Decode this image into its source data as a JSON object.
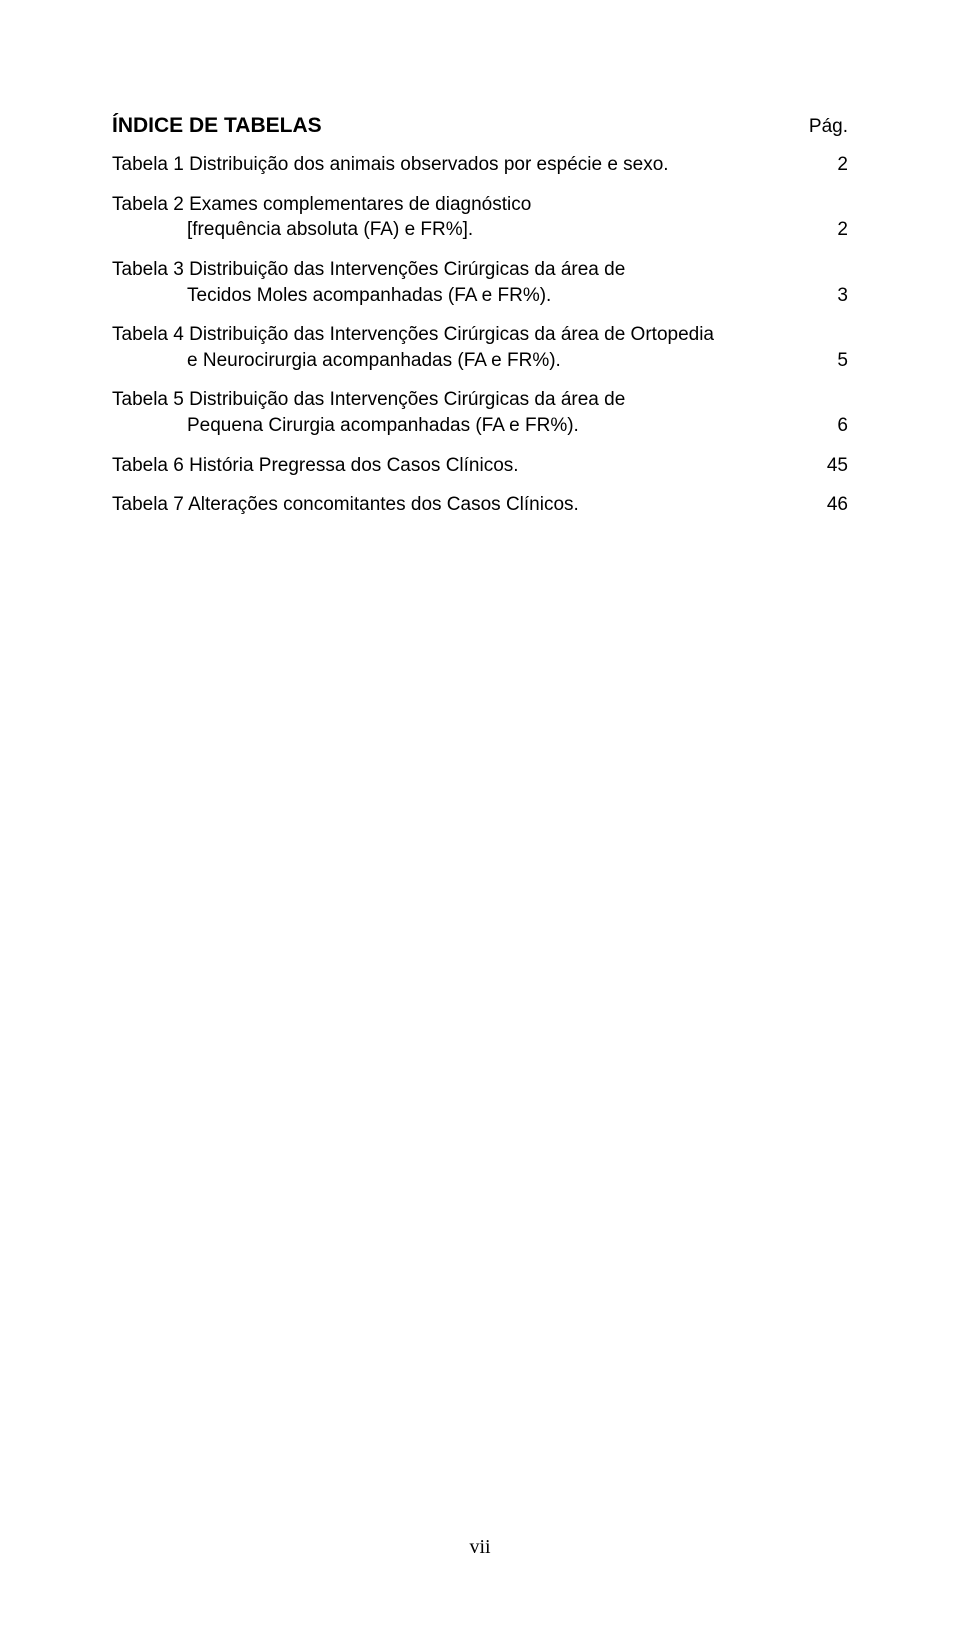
{
  "title": "ÍNDICE DE TABELAS",
  "pag_label": "Pág.",
  "entries": [
    {
      "line1": "Tabela 1 Distribuição dos animais observados por espécie e sexo.",
      "line2": null,
      "page": "2"
    },
    {
      "line1": "Tabela 2 Exames complementares de diagnóstico",
      "line2": "[frequência absoluta (FA) e FR%].",
      "page": "2"
    },
    {
      "line1": "Tabela 3 Distribuição das Intervenções Cirúrgicas da área de",
      "line2": "Tecidos Moles acompanhadas (FA e FR%).",
      "page": "3"
    },
    {
      "line1": "Tabela 4 Distribuição das Intervenções Cirúrgicas da área de Ortopedia",
      "line2": "e Neurocirurgia acompanhadas (FA e FR%).",
      "page": "5"
    },
    {
      "line1": "Tabela 5 Distribuição das Intervenções Cirúrgicas da área de",
      "line2": "Pequena Cirurgia acompanhadas (FA e FR%).",
      "page": "6"
    },
    {
      "line1": "Tabela 6 História Pregressa dos Casos Clínicos.",
      "line2": null,
      "page": "45"
    },
    {
      "line1": "Tabela 7 Alterações concomitantes dos Casos Clínicos.",
      "line2": null,
      "page": "46"
    }
  ],
  "page_number": "vii",
  "colors": {
    "background": "#ffffff",
    "text": "#000000"
  }
}
